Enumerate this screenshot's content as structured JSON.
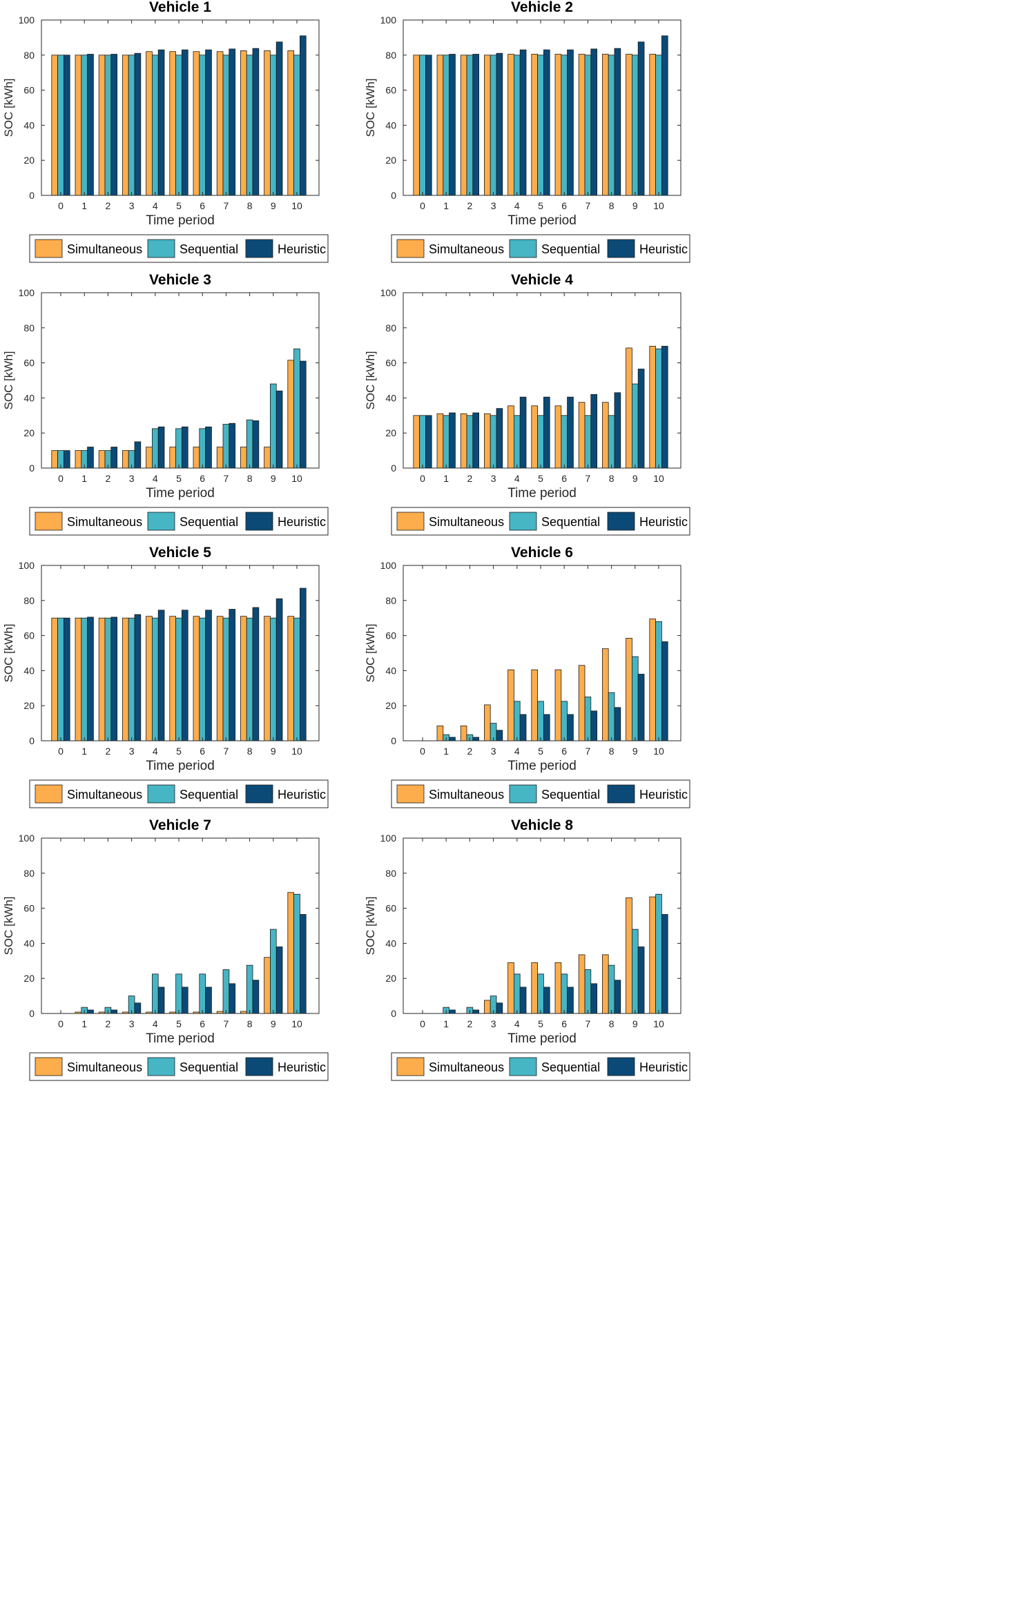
{
  "colors": {
    "simultaneous": "#fdad4c",
    "sequential": "#46b5c4",
    "heuristic": "#0b4a77",
    "axis": "#262626",
    "grid": "#dcdcdc"
  },
  "chart_data": [
    {
      "type": "bar",
      "title": "Vehicle 1",
      "xlabel": "Time period",
      "ylabel": "SOC [kWh]",
      "ylim": [
        0,
        100
      ],
      "yticks": [
        0,
        20,
        40,
        60,
        80,
        100
      ],
      "categories": [
        "0",
        "1",
        "2",
        "3",
        "4",
        "5",
        "6",
        "7",
        "8",
        "9",
        "10"
      ],
      "legend": [
        "Simultaneous",
        "Sequential",
        "Heuristic"
      ],
      "series": [
        {
          "name": "Simultaneous",
          "values": [
            80,
            80,
            80,
            80,
            82,
            82,
            82,
            82,
            82.5,
            82.5,
            82.5
          ]
        },
        {
          "name": "Sequential",
          "values": [
            80,
            80,
            80,
            80,
            80,
            80,
            80,
            80,
            80,
            80,
            80
          ]
        },
        {
          "name": "Heuristic",
          "values": [
            80,
            80.5,
            80.5,
            81,
            83,
            83,
            83,
            83.5,
            83.8,
            87.5,
            91
          ]
        }
      ]
    },
    {
      "type": "bar",
      "title": "Vehicle 2",
      "xlabel": "Time period",
      "ylabel": "SOC [kWh]",
      "ylim": [
        0,
        100
      ],
      "yticks": [
        0,
        20,
        40,
        60,
        80,
        100
      ],
      "categories": [
        "0",
        "1",
        "2",
        "3",
        "4",
        "5",
        "6",
        "7",
        "8",
        "9",
        "10"
      ],
      "legend": [
        "Simultaneous",
        "Sequential",
        "Heuristic"
      ],
      "series": [
        {
          "name": "Simultaneous",
          "values": [
            80,
            80,
            80,
            80,
            80.5,
            80.5,
            80.5,
            80.5,
            80.5,
            80.5,
            80.5
          ]
        },
        {
          "name": "Sequential",
          "values": [
            80,
            80,
            80,
            80,
            80,
            80,
            80,
            80,
            80,
            80,
            80
          ]
        },
        {
          "name": "Heuristic",
          "values": [
            80,
            80.5,
            80.5,
            81,
            83,
            83,
            83,
            83.5,
            83.8,
            87.5,
            91
          ]
        }
      ]
    },
    {
      "type": "bar",
      "title": "Vehicle 3",
      "xlabel": "Time period",
      "ylabel": "SOC [kWh]",
      "ylim": [
        0,
        100
      ],
      "yticks": [
        0,
        20,
        40,
        60,
        80,
        100
      ],
      "categories": [
        "0",
        "1",
        "2",
        "3",
        "4",
        "5",
        "6",
        "7",
        "8",
        "9",
        "10"
      ],
      "legend": [
        "Simultaneous",
        "Sequential",
        "Heuristic"
      ],
      "series": [
        {
          "name": "Simultaneous",
          "values": [
            10,
            10,
            10,
            10,
            12,
            12,
            12,
            12,
            12,
            12,
            61.5
          ]
        },
        {
          "name": "Sequential",
          "values": [
            10,
            10,
            10,
            10,
            22.5,
            22.5,
            22.5,
            25,
            27.5,
            48,
            68
          ]
        },
        {
          "name": "Heuristic",
          "values": [
            10,
            12,
            12,
            15,
            23.5,
            23.5,
            23.5,
            25.5,
            27,
            44,
            61
          ]
        }
      ]
    },
    {
      "type": "bar",
      "title": "Vehicle 4",
      "xlabel": "Time period",
      "ylabel": "SOC [kWh]",
      "ylim": [
        0,
        100
      ],
      "yticks": [
        0,
        20,
        40,
        60,
        80,
        100
      ],
      "categories": [
        "0",
        "1",
        "2",
        "3",
        "4",
        "5",
        "6",
        "7",
        "8",
        "9",
        "10"
      ],
      "legend": [
        "Simultaneous",
        "Sequential",
        "Heuristic"
      ],
      "series": [
        {
          "name": "Simultaneous",
          "values": [
            30,
            31,
            31,
            31,
            35.5,
            35.5,
            35.5,
            37.5,
            37.5,
            68.5,
            69.5
          ]
        },
        {
          "name": "Sequential",
          "values": [
            30,
            30,
            30,
            30,
            30,
            30,
            30,
            30,
            30,
            48,
            68
          ]
        },
        {
          "name": "Heuristic",
          "values": [
            30,
            31.5,
            31.5,
            34,
            40.5,
            40.5,
            40.5,
            42,
            43,
            56.5,
            69.5
          ]
        }
      ]
    },
    {
      "type": "bar",
      "title": "Vehicle 5",
      "xlabel": "Time period",
      "ylabel": "SOC [kWh]",
      "ylim": [
        0,
        100
      ],
      "yticks": [
        0,
        20,
        40,
        60,
        80,
        100
      ],
      "categories": [
        "0",
        "1",
        "2",
        "3",
        "4",
        "5",
        "6",
        "7",
        "8",
        "9",
        "10"
      ],
      "legend": [
        "Simultaneous",
        "Sequential",
        "Heuristic"
      ],
      "series": [
        {
          "name": "Simultaneous",
          "values": [
            70,
            70,
            70,
            70,
            71,
            71,
            71,
            71,
            71,
            71,
            71
          ]
        },
        {
          "name": "Sequential",
          "values": [
            70,
            70,
            70,
            70,
            70,
            70,
            70,
            70,
            70,
            70,
            70
          ]
        },
        {
          "name": "Heuristic",
          "values": [
            70,
            70.5,
            70.5,
            72,
            74.5,
            74.5,
            74.5,
            75,
            76,
            81,
            87
          ]
        }
      ]
    },
    {
      "type": "bar",
      "title": "Vehicle 6",
      "xlabel": "Time period",
      "ylabel": "SOC [kWh]",
      "ylim": [
        0,
        100
      ],
      "yticks": [
        0,
        20,
        40,
        60,
        80,
        100
      ],
      "categories": [
        "0",
        "1",
        "2",
        "3",
        "4",
        "5",
        "6",
        "7",
        "8",
        "9",
        "10"
      ],
      "legend": [
        "Simultaneous",
        "Sequential",
        "Heuristic"
      ],
      "series": [
        {
          "name": "Simultaneous",
          "values": [
            0,
            8.5,
            8.5,
            20.5,
            40.5,
            40.5,
            40.5,
            43,
            52.5,
            58.5,
            69.5
          ]
        },
        {
          "name": "Sequential",
          "values": [
            0,
            3.5,
            3.5,
            10,
            22.5,
            22.5,
            22.5,
            25,
            27.5,
            48,
            68
          ]
        },
        {
          "name": "Heuristic",
          "values": [
            0,
            2,
            2,
            6,
            15,
            15,
            15,
            17,
            19,
            38,
            56.5
          ]
        }
      ]
    },
    {
      "type": "bar",
      "title": "Vehicle 7",
      "xlabel": "Time period",
      "ylabel": "SOC [kWh]",
      "ylim": [
        0,
        100
      ],
      "yticks": [
        0,
        20,
        40,
        60,
        80,
        100
      ],
      "categories": [
        "0",
        "1",
        "2",
        "3",
        "4",
        "5",
        "6",
        "7",
        "8",
        "9",
        "10"
      ],
      "legend": [
        "Simultaneous",
        "Sequential",
        "Heuristic"
      ],
      "series": [
        {
          "name": "Simultaneous",
          "values": [
            0,
            0.8,
            0.8,
            0.8,
            0.8,
            0.8,
            0.8,
            1.2,
            1.2,
            32,
            69
          ]
        },
        {
          "name": "Sequential",
          "values": [
            0,
            3.5,
            3.5,
            10,
            22.5,
            22.5,
            22.5,
            25,
            27.5,
            48,
            68
          ]
        },
        {
          "name": "Heuristic",
          "values": [
            0,
            2,
            2,
            6,
            15,
            15,
            15,
            17,
            19,
            38,
            56.5
          ]
        }
      ]
    },
    {
      "type": "bar",
      "title": "Vehicle 8",
      "xlabel": "Time period",
      "ylabel": "SOC [kWh]",
      "ylim": [
        0,
        100
      ],
      "yticks": [
        0,
        20,
        40,
        60,
        80,
        100
      ],
      "categories": [
        "0",
        "1",
        "2",
        "3",
        "4",
        "5",
        "6",
        "7",
        "8",
        "9",
        "10"
      ],
      "legend": [
        "Simultaneous",
        "Sequential",
        "Heuristic"
      ],
      "series": [
        {
          "name": "Simultaneous",
          "values": [
            0,
            0,
            0,
            7.5,
            29,
            29,
            29,
            33.5,
            33.5,
            66,
            66.5
          ]
        },
        {
          "name": "Sequential",
          "values": [
            0,
            3.5,
            3.5,
            10,
            22.5,
            22.5,
            22.5,
            25,
            27.5,
            48,
            68
          ]
        },
        {
          "name": "Heuristic",
          "values": [
            0,
            2,
            2,
            6,
            15,
            15,
            15,
            17,
            19,
            38,
            56.5
          ]
        }
      ]
    }
  ]
}
